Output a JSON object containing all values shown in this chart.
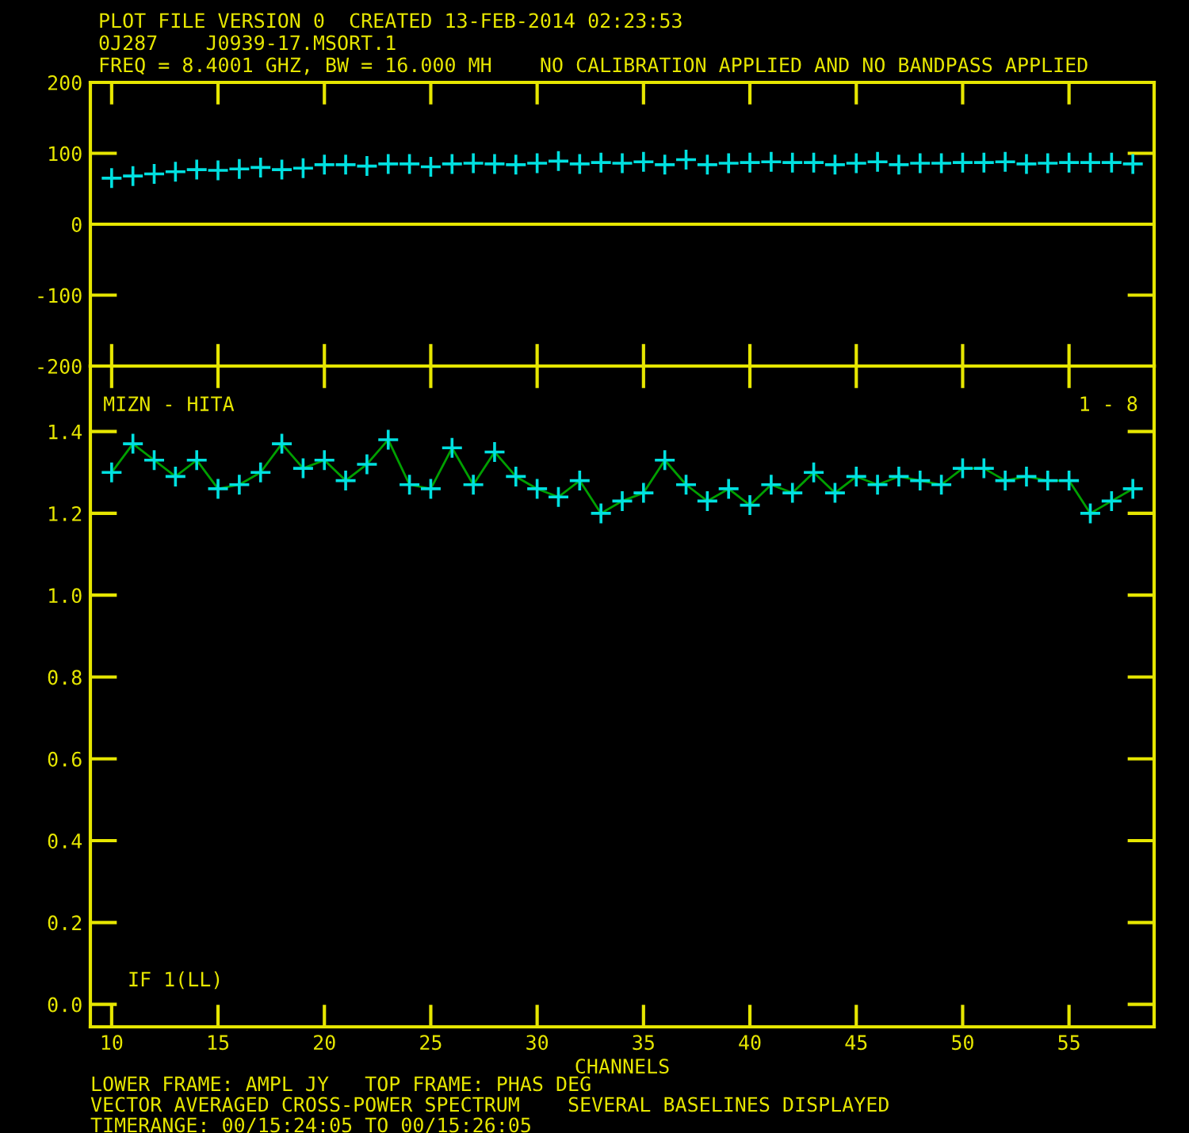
{
  "chart_data": [
    {
      "type": "scatter",
      "title": "PLOT FILE VERSION 0  CREATED 13-FEB-2014 02:23:53",
      "subtitle": "0J287    J0939-17.MSORT.1",
      "annotations": [
        "FREQ = 8.4001 GHZ, BW = 16.000 MH    NO CALIBRATION APPLIED AND NO BANDPASS APPLIED"
      ],
      "series": [
        {
          "color": "#00e0e0",
          "x": [
            10,
            11,
            12,
            13,
            14,
            15,
            16,
            17,
            18,
            19,
            20,
            21,
            22,
            23,
            24,
            25,
            26,
            27,
            28,
            29,
            30,
            31,
            32,
            33,
            34,
            35,
            36,
            37,
            38,
            39,
            40,
            41,
            42,
            43,
            44,
            45,
            46,
            47,
            48,
            49,
            50,
            51,
            52,
            53,
            54,
            55,
            56,
            57,
            58
          ],
          "values": [
            65,
            68,
            71,
            74,
            77,
            76,
            78,
            80,
            77,
            79,
            84,
            84,
            82,
            85,
            85,
            81,
            85,
            86,
            85,
            84,
            86,
            89,
            85,
            87,
            86,
            88,
            84,
            91,
            84,
            86,
            87,
            88,
            87,
            87,
            84,
            86,
            88,
            84,
            86,
            86,
            87,
            87,
            88,
            85,
            86,
            87,
            87,
            87,
            85
          ]
        }
      ],
      "marker": "cross",
      "xlim": [
        9,
        59
      ],
      "xticks": [
        10,
        15,
        20,
        25,
        30,
        35,
        40,
        45,
        50,
        55
      ],
      "ylim": [
        -200,
        200
      ],
      "yticks": [
        -200,
        -100,
        0,
        100,
        200
      ],
      "tick_labels": "y",
      "grid": false,
      "legend": false,
      "ref_lines": [
        {
          "axis": "y",
          "value": 0,
          "color": "#e6e600"
        }
      ]
    },
    {
      "type": "line",
      "xlabel": "CHANNELS",
      "annotations": [
        "MIZN - HITA",
        "1 - 8",
        "IF 1(LL)",
        "LOWER FRAME: AMPL JY   TOP FRAME: PHAS DEG",
        "VECTOR AVERAGED CROSS-POWER SPECTRUM    SEVERAL BASELINES DISPLAYED",
        "TIMERANGE: 00/15:24:05 TO 00/15:26:05"
      ],
      "series": [
        {
          "color": "#00a000",
          "colors": [
            "#00e0e0",
            "#00e0e0",
            "#00e0e0",
            "#00e0e0",
            "#00e0e0",
            "#00e0e0",
            "#00e0e0",
            "#00e0e0",
            "#00e0e0",
            "#00e0e0",
            "#00e0e0",
            "#00e0e0",
            "#00e0e0",
            "#00e0e0",
            "#00e0e0",
            "#00e0e0",
            "#00e0e0",
            "#00e0e0",
            "#00e0e0",
            "#00e0e0",
            "#00e0e0",
            "#00e0e0",
            "#00e0e0",
            "#00e0e0",
            "#00e0e0",
            "#00e0e0",
            "#00e0e0",
            "#00e0e0",
            "#00e0e0",
            "#00e0e0",
            "#00e0e0",
            "#00e0e0",
            "#00e0e0",
            "#00e0e0",
            "#00e0e0",
            "#00e0e0",
            "#00e0e0",
            "#00e0e0",
            "#00e0e0",
            "#00e0e0",
            "#00e0e0",
            "#00e0e0",
            "#00e0e0",
            "#00e0e0",
            "#00e0e0",
            "#00e0e0",
            "#00e0e0",
            "#00e0e0",
            "#00e0e0"
          ],
          "x": [
            10,
            11,
            12,
            13,
            14,
            15,
            16,
            17,
            18,
            19,
            20,
            21,
            22,
            23,
            24,
            25,
            26,
            27,
            28,
            29,
            30,
            31,
            32,
            33,
            34,
            35,
            36,
            37,
            38,
            39,
            40,
            41,
            42,
            43,
            44,
            45,
            46,
            47,
            48,
            49,
            50,
            51,
            52,
            53,
            54,
            55,
            56,
            57,
            58
          ],
          "values": [
            1.3,
            1.37,
            1.33,
            1.29,
            1.33,
            1.26,
            1.27,
            1.3,
            1.37,
            1.31,
            1.33,
            1.28,
            1.32,
            1.38,
            1.27,
            1.26,
            1.36,
            1.27,
            1.35,
            1.29,
            1.26,
            1.24,
            1.28,
            1.2,
            1.23,
            1.25,
            1.33,
            1.27,
            1.23,
            1.26,
            1.22,
            1.27,
            1.25,
            1.3,
            1.25,
            1.29,
            1.27,
            1.29,
            1.28,
            1.27,
            1.31,
            1.31,
            1.28,
            1.29,
            1.28,
            1.28,
            1.2,
            1.23,
            1.26
          ]
        }
      ],
      "marker": "cross",
      "line_style": "solid",
      "xlim": [
        9,
        59
      ],
      "xticks": [
        10,
        15,
        20,
        25,
        30,
        35,
        40,
        45,
        50,
        55
      ],
      "ylim": [
        -0.055,
        1.56
      ],
      "yticks": [
        {
          "value": 0,
          "label": "0.0"
        },
        0.2,
        0.4,
        0.6,
        0.8,
        {
          "value": 1,
          "label": "1.0"
        },
        1.2,
        1.4
      ],
      "grid": false,
      "legend": false
    }
  ]
}
